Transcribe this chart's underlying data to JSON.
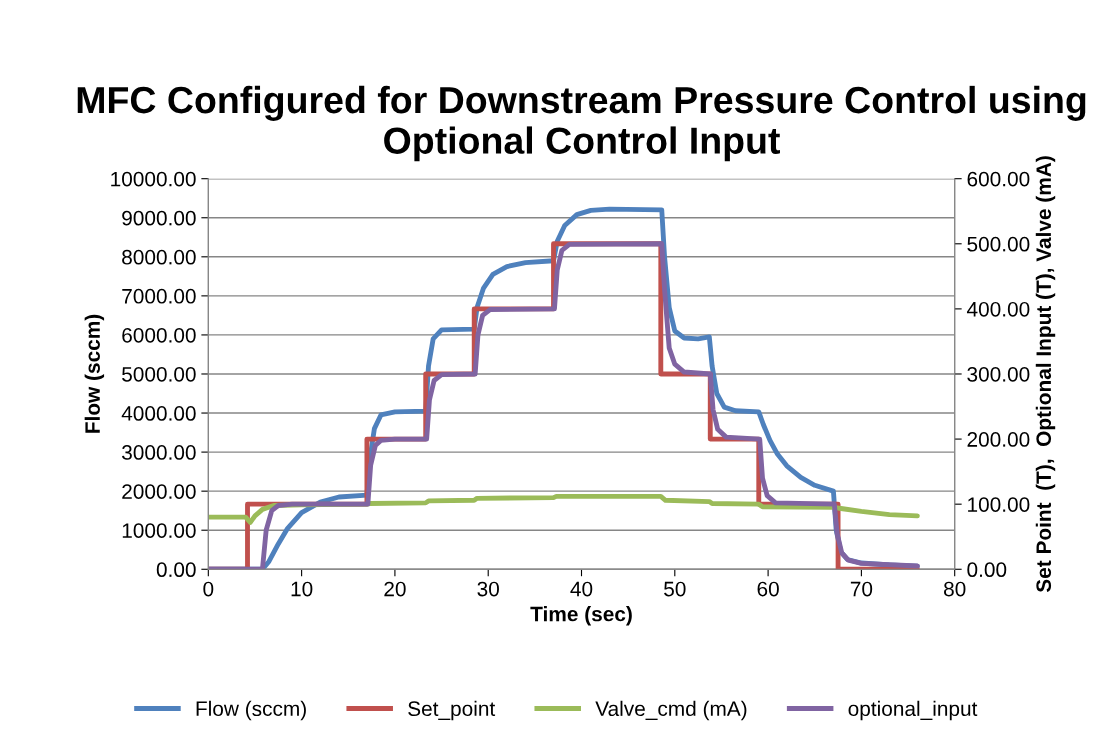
{
  "chart_data": {
    "type": "line",
    "title": "MFC Configured for Downstream Pressure Control using Optional Control Input",
    "xlabel": "Time (sec)",
    "ylabel": "Flow (sccm)",
    "y2label": "Set Point  (T),  Optional Input (T), Valve (mA)",
    "xlim": [
      0,
      80
    ],
    "xticks": [
      0,
      10,
      20,
      30,
      40,
      50,
      60,
      70,
      80
    ],
    "ylim": [
      0,
      10000
    ],
    "yticks": [
      {
        "value": 0,
        "label": "0.00"
      },
      {
        "value": 1000,
        "label": "1000.00"
      },
      {
        "value": 2000,
        "label": "2000.00"
      },
      {
        "value": 3000,
        "label": "3000.00"
      },
      {
        "value": 4000,
        "label": "4000.00"
      },
      {
        "value": 5000,
        "label": "5000.00"
      },
      {
        "value": 6000,
        "label": "6000.00"
      },
      {
        "value": 7000,
        "label": "7000.00"
      },
      {
        "value": 8000,
        "label": "8000.00"
      },
      {
        "value": 9000,
        "label": "9000.00"
      },
      {
        "value": 10000,
        "label": "10000.00"
      }
    ],
    "y2lim": [
      0,
      600
    ],
    "y2ticks": [
      {
        "value": 0,
        "label": "0.00"
      },
      {
        "value": 100,
        "label": "100.00"
      },
      {
        "value": 200,
        "label": "200.00"
      },
      {
        "value": 300,
        "label": "300.00"
      },
      {
        "value": 400,
        "label": "400.00"
      },
      {
        "value": 500,
        "label": "500.00"
      },
      {
        "value": 600,
        "label": "600.00"
      }
    ],
    "grid": "y",
    "legend": "bottom",
    "marker": "none",
    "line_style": "solid",
    "series": [
      {
        "name": "Flow (sccm)",
        "color": "#4f81bd",
        "x": [
          0,
          5.8,
          6.5,
          7.5,
          8.5,
          10,
          12,
          14,
          17,
          17.3,
          17.8,
          18.5,
          20,
          23.3,
          23.6,
          24.1,
          25,
          28.5,
          28.8,
          29.5,
          30.5,
          32,
          34,
          37,
          37.4,
          38.2,
          39.5,
          41,
          43,
          48.6,
          48.9,
          49.4,
          50,
          51,
          52.5,
          53.7,
          54,
          54.5,
          55.3,
          56.5,
          59,
          59.5,
          60.2,
          61,
          62,
          63.5,
          65,
          67,
          67.3,
          67.8,
          68.5,
          70,
          73,
          76
        ],
        "values": [
          0,
          0,
          200,
          650,
          1050,
          1450,
          1720,
          1850,
          1900,
          2800,
          3600,
          3950,
          4030,
          4050,
          5200,
          5900,
          6130,
          6150,
          6700,
          7200,
          7550,
          7750,
          7850,
          7900,
          8400,
          8800,
          9080,
          9190,
          9220,
          9200,
          8000,
          6700,
          6100,
          5920,
          5900,
          5950,
          5200,
          4500,
          4150,
          4060,
          4030,
          3700,
          3300,
          2950,
          2650,
          2350,
          2150,
          2000,
          1000,
          450,
          250,
          160,
          110,
          80
        ]
      },
      {
        "name": "Set_point",
        "color": "#c0504d",
        "axis": "y2",
        "x": [
          0,
          4.2,
          4.2,
          17,
          17,
          23.3,
          23.3,
          28.5,
          28.5,
          37,
          37,
          48.5,
          48.5,
          53.8,
          53.8,
          59,
          59,
          67.5,
          67.5,
          76
        ],
        "values": [
          0,
          0,
          100,
          100,
          200,
          200,
          300,
          300,
          400,
          400,
          500,
          500,
          300,
          300,
          200,
          200,
          100,
          100,
          0,
          0
        ]
      },
      {
        "name": "Valve_cmd (mA)",
        "color": "#9bbb59",
        "axis": "y2",
        "x": [
          0,
          4,
          4.5,
          5,
          5.8,
          7,
          10,
          17,
          17.3,
          23.3,
          23.6,
          28.5,
          28.8,
          37,
          37.3,
          48.5,
          49,
          53.7,
          54,
          59,
          59.4,
          67,
          68,
          70,
          73,
          76
        ],
        "values": [
          80,
          80,
          72,
          82,
          92,
          98,
          99,
          100,
          101,
          102,
          105,
          106,
          109,
          110,
          112,
          112,
          106,
          104,
          101,
          100,
          96,
          95,
          93,
          89,
          84,
          82
        ]
      },
      {
        "name": "optional_input",
        "color": "#8064a2",
        "axis": "y2",
        "x": [
          0,
          5.8,
          6.2,
          6.8,
          7.5,
          9,
          17.1,
          17.4,
          17.9,
          18.5,
          20,
          23.4,
          23.7,
          24.2,
          25,
          28.6,
          28.9,
          29.4,
          30.2,
          37.1,
          37.4,
          37.9,
          38.7,
          48.6,
          48.9,
          49.4,
          50,
          51,
          53.8,
          54.1,
          54.6,
          55.5,
          59.1,
          59.4,
          59.9,
          60.8,
          67.1,
          67.4,
          67.9,
          68.6,
          70,
          76
        ],
        "values": [
          0,
          0,
          60,
          90,
          98,
          100,
          100,
          160,
          190,
          198,
          200,
          200,
          260,
          290,
          299,
          300,
          360,
          390,
          399,
          400,
          460,
          490,
          499,
          500,
          430,
          340,
          315,
          303,
          300,
          245,
          215,
          203,
          200,
          140,
          113,
          102,
          100,
          55,
          25,
          14,
          9,
          5
        ]
      }
    ]
  }
}
